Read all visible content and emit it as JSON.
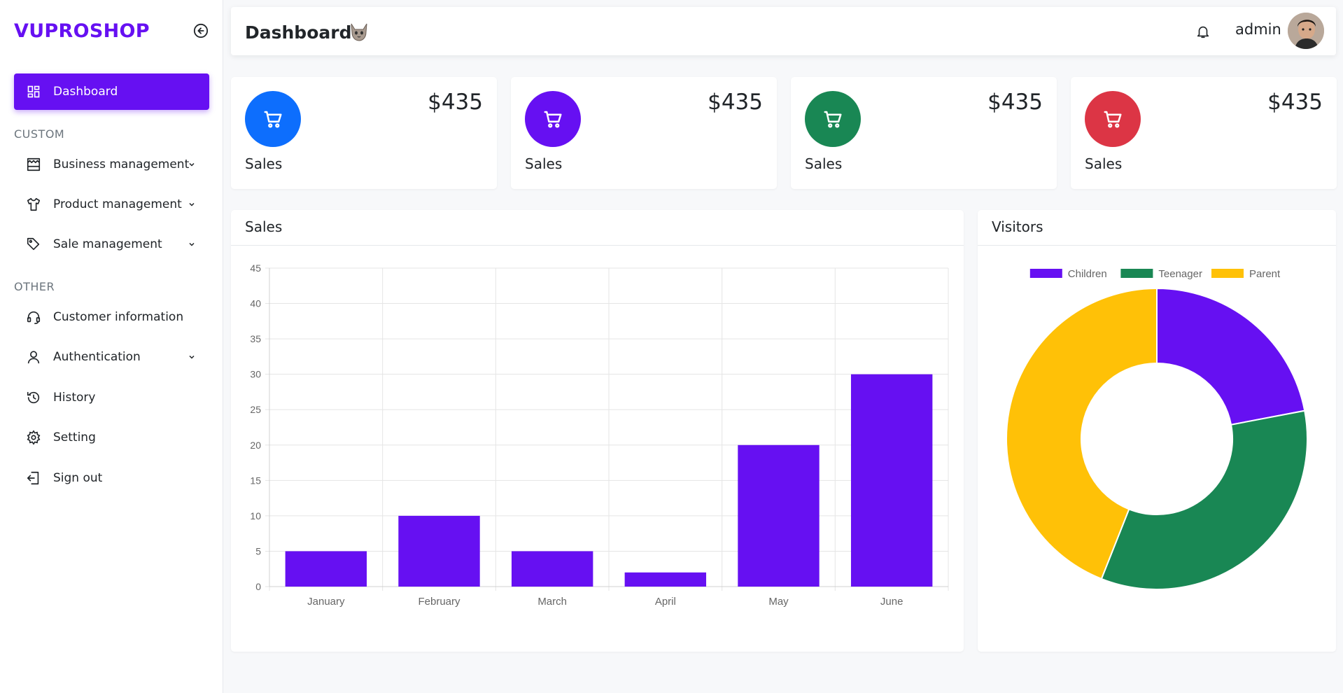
{
  "sidebar": {
    "brand": "VUPROSHOP",
    "active_item": {
      "label": "Dashboard",
      "icon": "dashboard-icon"
    },
    "custom_label": "CUSTOM",
    "custom_items": [
      {
        "label": "Business management",
        "icon": "store-icon",
        "has_submenu": true
      },
      {
        "label": "Product management",
        "icon": "shirt-icon",
        "has_submenu": true
      },
      {
        "label": "Sale management",
        "icon": "tag-icon",
        "has_submenu": true
      }
    ],
    "other_label": "OTHER",
    "other_items": [
      {
        "label": "Customer information",
        "icon": "headset-icon",
        "has_submenu": false
      },
      {
        "label": "Authentication",
        "icon": "user-icon",
        "has_submenu": true
      },
      {
        "label": "History",
        "icon": "history-icon",
        "has_submenu": false
      },
      {
        "label": "Setting",
        "icon": "gear-icon",
        "has_submenu": false
      },
      {
        "label": "Sign out",
        "icon": "sign-out-icon",
        "has_submenu": false
      }
    ]
  },
  "header": {
    "title": "Dashboard",
    "username": "admin"
  },
  "stats": [
    {
      "value": "$435",
      "label": "Sales",
      "color": "#0d6efd"
    },
    {
      "value": "$435",
      "label": "Sales",
      "color": "#6610f2"
    },
    {
      "value": "$435",
      "label": "Sales",
      "color": "#198754"
    },
    {
      "value": "$435",
      "label": "Sales",
      "color": "#dc3545"
    }
  ],
  "sales_card": {
    "title": "Sales"
  },
  "visitors_card": {
    "title": "Visitors"
  },
  "chart_data": [
    {
      "type": "bar",
      "categories": [
        "January",
        "February",
        "March",
        "April",
        "May",
        "June"
      ],
      "values": [
        5,
        10,
        5,
        2,
        20,
        30
      ],
      "ylim": [
        0,
        45
      ],
      "yticks": [
        "0",
        "5",
        "10",
        "15",
        "20",
        "25",
        "30",
        "35",
        "40",
        "45"
      ],
      "color": "#6610f2",
      "grid": true
    },
    {
      "type": "pie",
      "subtype": "doughnut",
      "series": [
        {
          "name": "Children",
          "value": 22,
          "color": "#6610f2"
        },
        {
          "name": "Teenager",
          "value": 34,
          "color": "#198754"
        },
        {
          "name": "Parent",
          "value": 44,
          "color": "#ffc107"
        }
      ],
      "legend": "top"
    }
  ]
}
